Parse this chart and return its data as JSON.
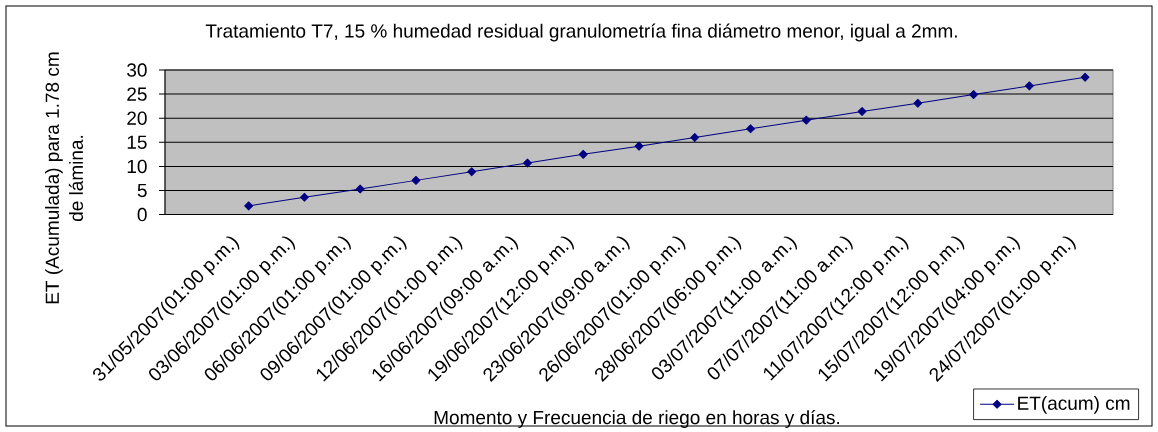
{
  "chart_data": {
    "type": "line",
    "title": "Tratamiento T7, 15 % humedad residual granulometría fina diámetro menor, igual a 2mm.",
    "xlabel": "Momento y Frecuencia de riego en horas y días.",
    "ylabel": "ET (Acumulada) para 1.78 cm de lámina.",
    "categories": [
      null,
      "31/05/2007(01:00 p.m.)",
      "03/06/2007(01:00 p.m.)",
      "06/06/2007(01:00 p.m.)",
      "09/06/2007(01:00 p.m.)",
      "12/06/2007(01:00 p.m.)",
      "16/06/2007(09:00 a.m.)",
      "19/06/2007(12:00 p.m.)",
      "23/06/2007(09:00 a.m.)",
      "26/06/2007(01:00 p.m.)",
      "28/06/2007(06:00 p.m.)",
      "03/07/2007(11:00 a.m.)",
      "07/07/2007(11:00 a.m.)",
      "11/07/2007(12:00 p.m.)",
      "15/07/2007(12:00 p.m.)",
      "19/07/2007(04:00 p.m.)",
      "24/07/2007(01:00 p.m.)"
    ],
    "series": [
      {
        "name": "ET(acum) cm",
        "color": "#000080",
        "values": [
          null,
          1.8,
          3.6,
          5.3,
          7.1,
          8.9,
          10.7,
          12.5,
          14.2,
          16.0,
          17.8,
          19.6,
          21.4,
          23.1,
          24.9,
          26.7,
          28.5
        ]
      }
    ],
    "ylim": [
      0,
      30
    ],
    "yticks": [
      0,
      5,
      10,
      15,
      20,
      25,
      30
    ],
    "grid": "y",
    "legend": "bottom right",
    "marker": "diamond",
    "line_style": "solid"
  }
}
